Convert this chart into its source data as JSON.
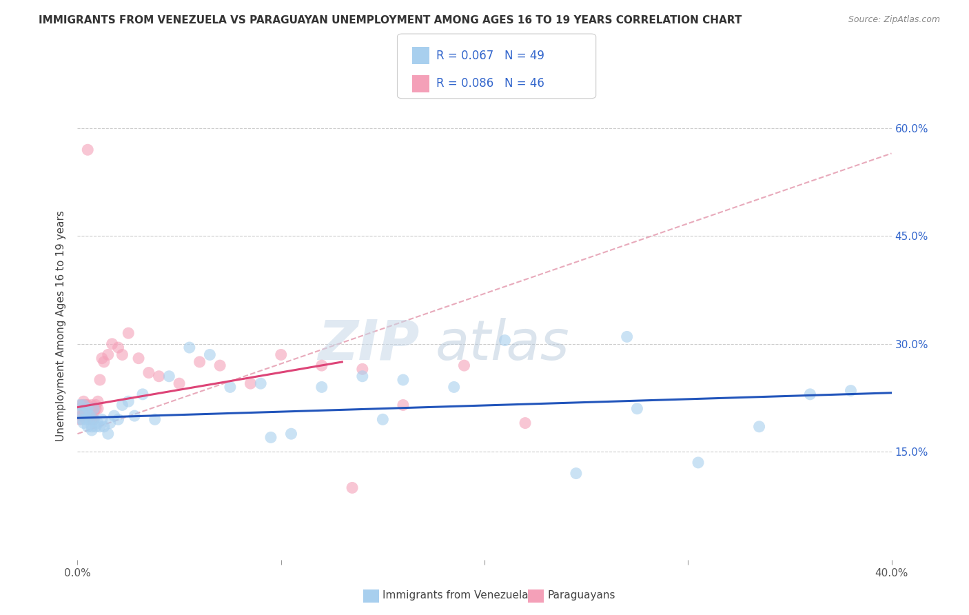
{
  "title": "IMMIGRANTS FROM VENEZUELA VS PARAGUAYAN UNEMPLOYMENT AMONG AGES 16 TO 19 YEARS CORRELATION CHART",
  "source": "Source: ZipAtlas.com",
  "ylabel": "Unemployment Among Ages 16 to 19 years",
  "xlabel_blue": "Immigrants from Venezuela",
  "xlabel_pink": "Paraguayans",
  "xlim": [
    0.0,
    0.4
  ],
  "ylim": [
    0.0,
    0.65
  ],
  "R_blue": 0.067,
  "N_blue": 49,
  "R_pink": 0.086,
  "N_pink": 46,
  "blue_color": "#A8CFEE",
  "pink_color": "#F4A0B8",
  "line_blue": "#2255BB",
  "line_pink": "#DD4477",
  "line_dashed_color": "#E8AABB",
  "watermark_zip": "ZIP",
  "watermark_atlas": "atlas",
  "blue_scatter_x": [
    0.001,
    0.002,
    0.002,
    0.003,
    0.003,
    0.004,
    0.004,
    0.005,
    0.005,
    0.006,
    0.006,
    0.007,
    0.007,
    0.008,
    0.008,
    0.009,
    0.01,
    0.011,
    0.012,
    0.013,
    0.015,
    0.016,
    0.018,
    0.02,
    0.022,
    0.025,
    0.028,
    0.032,
    0.038,
    0.045,
    0.055,
    0.065,
    0.075,
    0.09,
    0.105,
    0.12,
    0.14,
    0.16,
    0.185,
    0.21,
    0.245,
    0.275,
    0.305,
    0.335,
    0.36,
    0.38,
    0.27,
    0.15,
    0.095
  ],
  "blue_scatter_y": [
    0.215,
    0.205,
    0.195,
    0.215,
    0.19,
    0.205,
    0.195,
    0.21,
    0.185,
    0.2,
    0.195,
    0.18,
    0.185,
    0.195,
    0.21,
    0.185,
    0.19,
    0.185,
    0.195,
    0.185,
    0.175,
    0.19,
    0.2,
    0.195,
    0.215,
    0.22,
    0.2,
    0.23,
    0.195,
    0.255,
    0.295,
    0.285,
    0.24,
    0.245,
    0.175,
    0.24,
    0.255,
    0.25,
    0.24,
    0.305,
    0.12,
    0.21,
    0.135,
    0.185,
    0.23,
    0.235,
    0.31,
    0.195,
    0.17
  ],
  "pink_scatter_x": [
    0.001,
    0.001,
    0.002,
    0.002,
    0.003,
    0.003,
    0.003,
    0.004,
    0.004,
    0.005,
    0.005,
    0.005,
    0.006,
    0.006,
    0.007,
    0.007,
    0.007,
    0.008,
    0.008,
    0.009,
    0.009,
    0.01,
    0.01,
    0.011,
    0.012,
    0.013,
    0.015,
    0.017,
    0.02,
    0.022,
    0.025,
    0.03,
    0.035,
    0.04,
    0.05,
    0.06,
    0.07,
    0.085,
    0.1,
    0.12,
    0.14,
    0.16,
    0.19,
    0.22,
    0.135,
    0.005
  ],
  "pink_scatter_y": [
    0.21,
    0.195,
    0.2,
    0.215,
    0.22,
    0.215,
    0.205,
    0.215,
    0.205,
    0.21,
    0.21,
    0.215,
    0.2,
    0.21,
    0.215,
    0.2,
    0.195,
    0.205,
    0.195,
    0.21,
    0.215,
    0.22,
    0.21,
    0.25,
    0.28,
    0.275,
    0.285,
    0.3,
    0.295,
    0.285,
    0.315,
    0.28,
    0.26,
    0.255,
    0.245,
    0.275,
    0.27,
    0.245,
    0.285,
    0.27,
    0.265,
    0.215,
    0.27,
    0.19,
    0.1,
    0.57
  ],
  "blue_line_x": [
    0.0,
    0.4
  ],
  "blue_line_y": [
    0.197,
    0.232
  ],
  "pink_line_x": [
    0.0,
    0.13
  ],
  "pink_line_y": [
    0.212,
    0.275
  ],
  "dashed_line_x": [
    0.0,
    0.4
  ],
  "dashed_line_y": [
    0.175,
    0.565
  ]
}
